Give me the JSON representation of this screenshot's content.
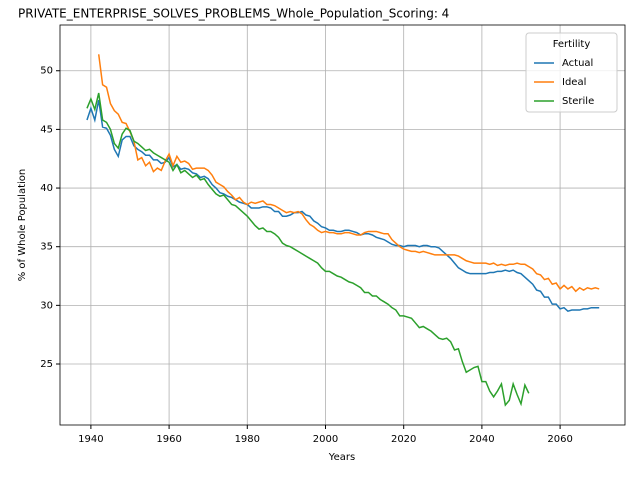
{
  "chart_data": {
    "type": "line",
    "title": "PRIVATE_ENTERPRISE_SOLVES_PROBLEMS_Whole_Population_Scoring: 4",
    "xlabel": "Years",
    "ylabel": "% of Whole Population",
    "legend_title": "Fertility",
    "legend_position": "upper right",
    "grid": true,
    "xlim": [
      1932.1,
      2076.6
    ],
    "ylim": [
      19.8,
      53.9
    ],
    "xticks": [
      1940,
      1960,
      1980,
      2000,
      2020,
      2040,
      2060
    ],
    "yticks": [
      25,
      30,
      35,
      40,
      45,
      50
    ],
    "x": [
      1939,
      1940,
      1941,
      1942,
      1943,
      1944,
      1945,
      1946,
      1947,
      1948,
      1949,
      1950,
      1951,
      1952,
      1953,
      1954,
      1955,
      1956,
      1957,
      1958,
      1959,
      1960,
      1961,
      1962,
      1963,
      1964,
      1965,
      1966,
      1967,
      1968,
      1969,
      1970,
      1971,
      1972,
      1973,
      1974,
      1975,
      1976,
      1977,
      1978,
      1979,
      1980,
      1981,
      1982,
      1983,
      1984,
      1985,
      1986,
      1987,
      1988,
      1989,
      1990,
      1991,
      1992,
      1993,
      1994,
      1995,
      1996,
      1997,
      1998,
      1999,
      2000,
      2001,
      2002,
      2003,
      2004,
      2005,
      2006,
      2007,
      2008,
      2009,
      2010,
      2011,
      2012,
      2013,
      2014,
      2015,
      2016,
      2017,
      2018,
      2019,
      2020,
      2021,
      2022,
      2023,
      2024,
      2025,
      2026,
      2027,
      2028,
      2029,
      2030,
      2031,
      2032,
      2033,
      2034,
      2035,
      2036,
      2037,
      2038,
      2039,
      2040,
      2041,
      2042,
      2043,
      2044,
      2045,
      2046,
      2047,
      2048,
      2049,
      2050,
      2051,
      2052,
      2053,
      2054,
      2055,
      2056,
      2057,
      2058,
      2059,
      2060,
      2061,
      2062,
      2063,
      2064,
      2065,
      2066,
      2067,
      2068,
      2069,
      2070
    ],
    "series": [
      {
        "name": "Actual",
        "color": "#1f77b4",
        "values": [
          45.8,
          46.8,
          45.8,
          47.5,
          45.2,
          45.1,
          44.5,
          43.3,
          42.7,
          44.1,
          44.4,
          44.4,
          43.6,
          43.3,
          43.1,
          42.8,
          42.8,
          42.4,
          42.4,
          42.1,
          42.2,
          42.6,
          41.8,
          42.0,
          41.6,
          41.7,
          41.6,
          41.3,
          41.2,
          40.9,
          41.0,
          40.8,
          40.3,
          40.0,
          39.6,
          39.5,
          39.3,
          39.2,
          39.0,
          38.8,
          38.7,
          38.6,
          38.3,
          38.3,
          38.3,
          38.4,
          38.4,
          38.3,
          38.0,
          38.0,
          37.6,
          37.6,
          37.7,
          37.9,
          37.9,
          38.0,
          37.7,
          37.6,
          37.2,
          37.0,
          36.7,
          36.6,
          36.4,
          36.4,
          36.3,
          36.3,
          36.4,
          36.4,
          36.3,
          36.2,
          36.0,
          36.1,
          36.1,
          36.0,
          35.8,
          35.7,
          35.6,
          35.4,
          35.2,
          35.1,
          35.1,
          35.0,
          35.1,
          35.1,
          35.1,
          35.0,
          35.1,
          35.1,
          35.0,
          35.0,
          34.9,
          34.6,
          34.3,
          34.0,
          33.6,
          33.2,
          33.0,
          32.8,
          32.7,
          32.7,
          32.7,
          32.7,
          32.7,
          32.8,
          32.8,
          32.9,
          32.9,
          33.0,
          32.9,
          33.0,
          32.8,
          32.7,
          32.4,
          32.1,
          31.8,
          31.3,
          31.2,
          30.7,
          30.7,
          30.1,
          30.1,
          29.7,
          29.8,
          29.5,
          29.6,
          29.6,
          29.6,
          29.7,
          29.7,
          29.8,
          29.8,
          29.8
        ]
      },
      {
        "name": "Ideal",
        "color": "#ff7f0e",
        "values": [
          null,
          null,
          null,
          51.4,
          48.8,
          48.6,
          47.2,
          46.6,
          46.3,
          45.6,
          45.5,
          44.8,
          44.0,
          42.4,
          42.6,
          41.9,
          42.2,
          41.4,
          41.7,
          41.5,
          42.3,
          42.9,
          41.9,
          42.7,
          42.2,
          42.3,
          42.1,
          41.6,
          41.7,
          41.7,
          41.7,
          41.5,
          41.1,
          40.5,
          40.3,
          40.1,
          39.7,
          39.4,
          39.0,
          39.2,
          38.8,
          38.6,
          38.8,
          38.7,
          38.8,
          38.9,
          38.6,
          38.6,
          38.5,
          38.3,
          38.1,
          37.9,
          38.0,
          37.9,
          38.0,
          37.8,
          37.3,
          36.9,
          36.7,
          36.4,
          36.2,
          36.3,
          36.2,
          36.2,
          36.1,
          36.1,
          36.2,
          36.2,
          36.1,
          36.0,
          36.0,
          36.2,
          36.3,
          36.3,
          36.3,
          36.2,
          36.1,
          36.1,
          35.6,
          35.3,
          35.0,
          34.8,
          34.7,
          34.6,
          34.6,
          34.5,
          34.6,
          34.5,
          34.4,
          34.3,
          34.3,
          34.3,
          34.3,
          34.3,
          34.3,
          34.2,
          34.0,
          33.8,
          33.7,
          33.6,
          33.6,
          33.6,
          33.6,
          33.5,
          33.6,
          33.4,
          33.5,
          33.4,
          33.5,
          33.5,
          33.6,
          33.5,
          33.5,
          33.3,
          33.1,
          32.7,
          32.6,
          32.2,
          32.3,
          31.8,
          31.9,
          31.4,
          31.7,
          31.4,
          31.6,
          31.2,
          31.5,
          31.3,
          31.5,
          31.4,
          31.5,
          31.4
        ]
      },
      {
        "name": "Sterile",
        "color": "#2ca02c",
        "values": [
          46.8,
          47.6,
          46.7,
          48.1,
          45.8,
          45.6,
          45.0,
          43.8,
          43.4,
          44.6,
          45.1,
          44.9,
          44.0,
          43.8,
          43.5,
          43.2,
          43.3,
          43.0,
          42.8,
          42.6,
          42.4,
          42.2,
          41.5,
          42.0,
          41.3,
          41.5,
          41.2,
          40.9,
          41.1,
          40.7,
          40.8,
          40.3,
          39.9,
          39.5,
          39.3,
          39.4,
          39.0,
          38.6,
          38.5,
          38.2,
          37.9,
          37.6,
          37.2,
          36.8,
          36.5,
          36.6,
          36.3,
          36.3,
          36.1,
          35.8,
          35.3,
          35.1,
          35.0,
          34.8,
          34.6,
          34.4,
          34.2,
          34.0,
          33.8,
          33.6,
          33.2,
          32.9,
          32.9,
          32.7,
          32.5,
          32.4,
          32.2,
          32.0,
          31.9,
          31.7,
          31.5,
          31.1,
          31.1,
          30.8,
          30.8,
          30.5,
          30.3,
          30.1,
          29.8,
          29.6,
          29.1,
          29.1,
          29.0,
          28.9,
          28.5,
          28.1,
          28.2,
          28.0,
          27.8,
          27.5,
          27.2,
          27.1,
          27.2,
          26.9,
          26.2,
          26.3,
          25.2,
          24.3,
          24.5,
          24.7,
          24.8,
          23.5,
          23.5,
          22.7,
          22.2,
          22.7,
          23.3,
          21.5,
          21.9,
          23.3,
          22.4,
          21.6,
          23.2,
          22.5,
          null,
          null,
          null,
          null,
          null,
          null,
          null,
          null,
          null,
          null,
          null,
          null,
          null,
          null,
          null,
          null,
          null,
          null
        ]
      }
    ]
  }
}
